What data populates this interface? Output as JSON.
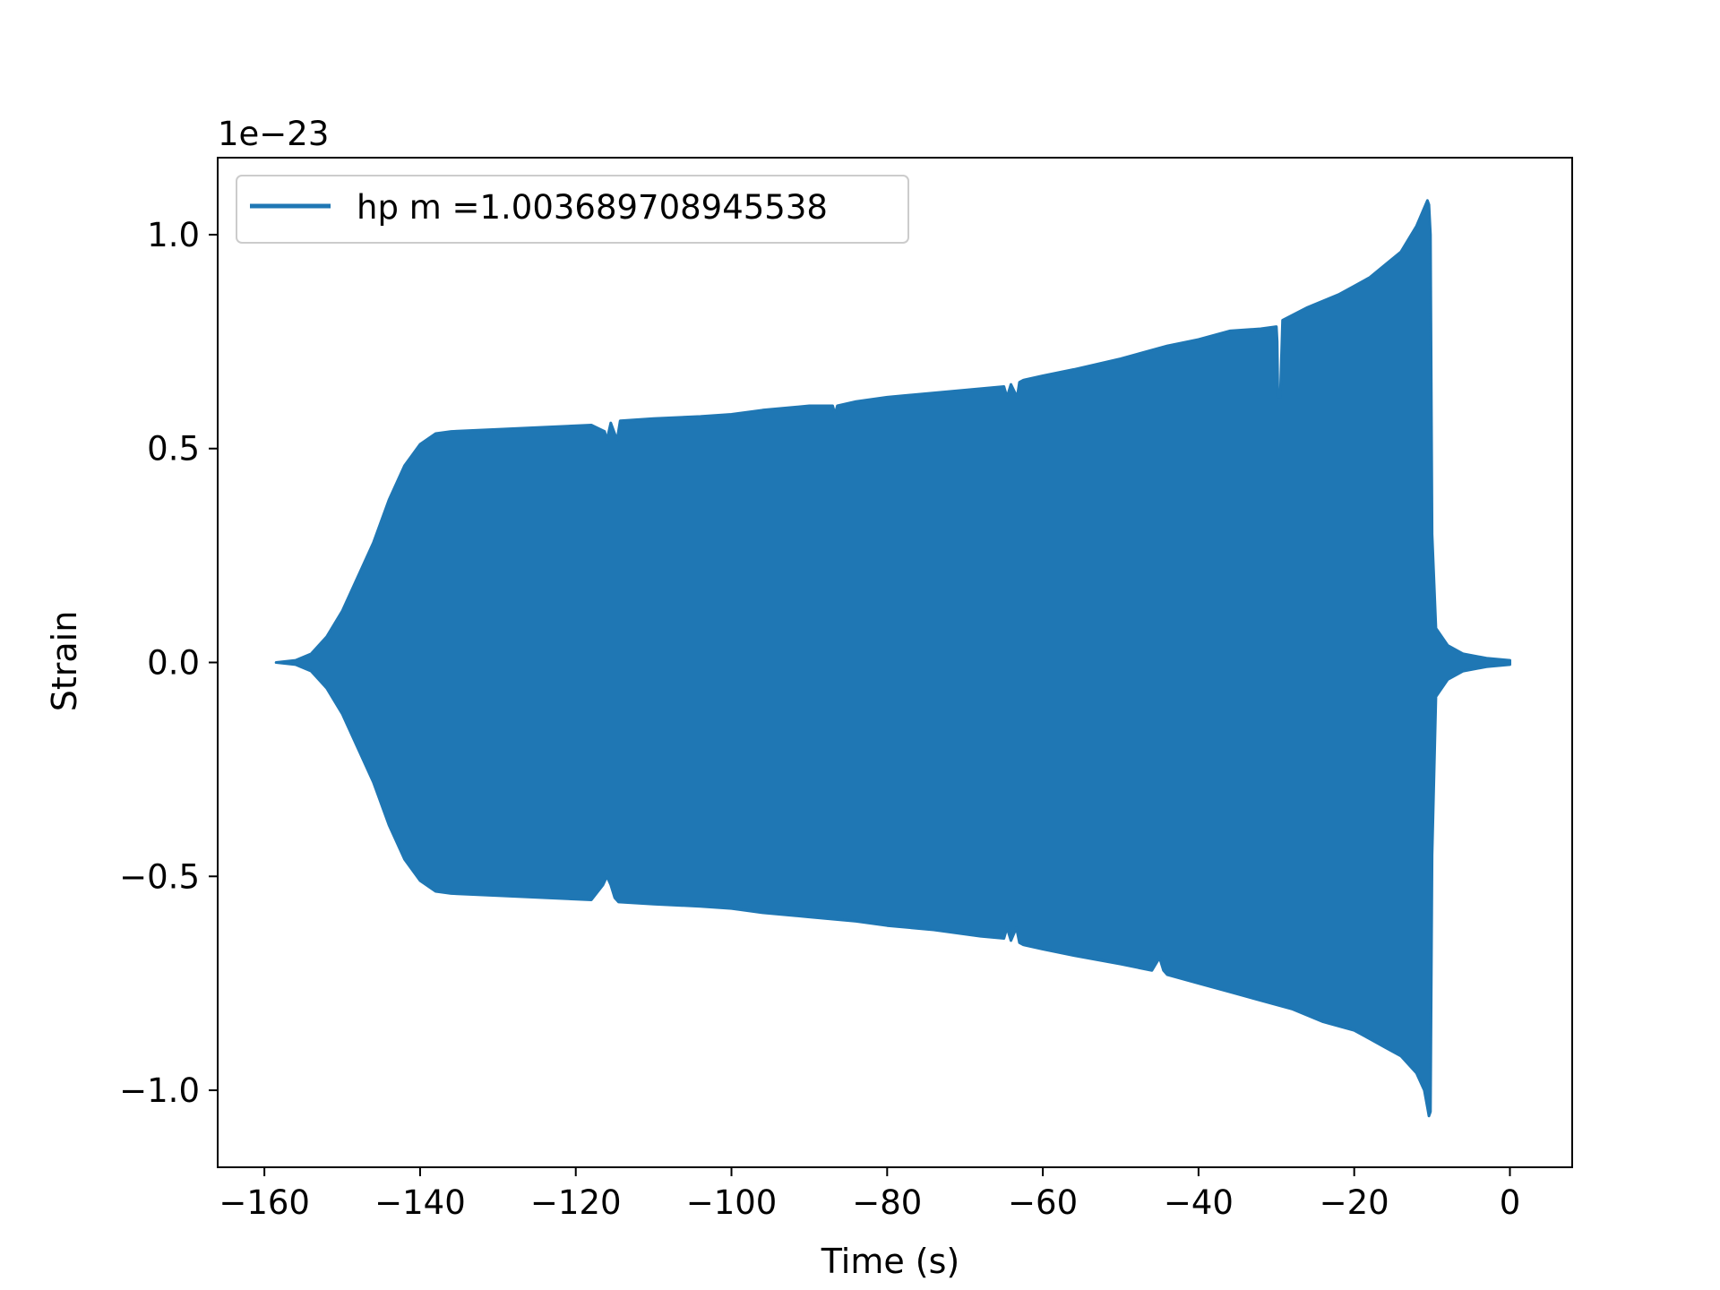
{
  "chart_data": {
    "type": "line",
    "xlabel": "Time (s)",
    "ylabel": "Strain",
    "y_offset_label": "1e−23",
    "xlim": [
      -166,
      8
    ],
    "ylim": [
      -1.18,
      1.18
    ],
    "x_ticks": [
      -160,
      -140,
      -120,
      -100,
      -80,
      -60,
      -40,
      -20,
      0
    ],
    "x_tick_labels": [
      "−160",
      "−140",
      "−120",
      "−100",
      "−80",
      "−60",
      "−40",
      "−20",
      "0"
    ],
    "y_ticks": [
      1.0,
      0.5,
      0.0,
      -0.5,
      -1.0
    ],
    "y_tick_labels": [
      "1.0",
      "0.5",
      "0.0",
      "−0.5",
      "−1.0"
    ],
    "grid": false,
    "legend_position": "top-left",
    "series": [
      {
        "name": "hp m =1.003689708945538",
        "color": "#1f77b4",
        "render": "dense-oscillation-envelope",
        "upper_envelope": {
          "x": [
            -158.5,
            -156,
            -154,
            -152,
            -150,
            -148,
            -146,
            -144,
            -142,
            -140,
            -138,
            -136,
            -130,
            -124,
            -118,
            -116.3,
            -116,
            -115.5,
            -114.7,
            -114.3,
            -110,
            -104,
            -100,
            -96,
            -90,
            -87,
            -86.7,
            -86.4,
            -84,
            -80,
            -74,
            -68,
            -65,
            -64.6,
            -64.1,
            -63.3,
            -63,
            -62.5,
            -60,
            -56,
            -50,
            -44,
            -40,
            -36,
            -32,
            -30,
            -29.9,
            -29.8,
            -29.5,
            -29.2,
            -26,
            -22,
            -20,
            -18,
            -16,
            -14,
            -12,
            -10.6,
            -10.4,
            -10.2,
            -10,
            -9.5,
            -8,
            -6,
            -3,
            0
          ],
          "y": [
            0.0,
            0.005,
            0.02,
            0.06,
            0.12,
            0.2,
            0.28,
            0.38,
            0.46,
            0.51,
            0.535,
            0.54,
            0.545,
            0.55,
            0.555,
            0.54,
            0.52,
            0.56,
            0.52,
            0.565,
            0.57,
            0.575,
            0.58,
            0.59,
            0.6,
            0.6,
            0.58,
            0.6,
            0.61,
            0.62,
            0.63,
            0.64,
            0.645,
            0.62,
            0.65,
            0.62,
            0.655,
            0.66,
            0.67,
            0.685,
            0.71,
            0.74,
            0.755,
            0.775,
            0.78,
            0.785,
            0.75,
            0.62,
            0.62,
            0.8,
            0.83,
            0.86,
            0.88,
            0.9,
            0.93,
            0.96,
            1.02,
            1.08,
            1.07,
            1.0,
            0.3,
            0.08,
            0.04,
            0.02,
            0.01,
            0.005
          ]
        },
        "lower_envelope": {
          "x": [
            -158.5,
            -156,
            -154,
            -152,
            -150,
            -148,
            -146,
            -144,
            -142,
            -140,
            -138,
            -136,
            -130,
            -124,
            -118,
            -116.5,
            -116,
            -115.5,
            -115,
            -114.5,
            -110,
            -104,
            -100,
            -96,
            -90,
            -84,
            -80,
            -74,
            -68,
            -65,
            -64.6,
            -64.1,
            -63.4,
            -63,
            -62.5,
            -60,
            -56,
            -50,
            -46,
            -45,
            -44.5,
            -44,
            -40,
            -36,
            -32,
            -28,
            -24,
            -20,
            -18,
            -16,
            -14,
            -12,
            -11,
            -10.6,
            -10.4,
            -10.2,
            -10,
            -9.5,
            -8,
            -6,
            -3,
            0
          ],
          "y": [
            0.0,
            -0.005,
            -0.02,
            -0.06,
            -0.12,
            -0.2,
            -0.28,
            -0.38,
            -0.46,
            -0.51,
            -0.535,
            -0.54,
            -0.545,
            -0.55,
            -0.555,
            -0.52,
            -0.5,
            -0.52,
            -0.55,
            -0.56,
            -0.565,
            -0.57,
            -0.575,
            -0.585,
            -0.595,
            -0.605,
            -0.615,
            -0.625,
            -0.64,
            -0.645,
            -0.62,
            -0.65,
            -0.62,
            -0.655,
            -0.66,
            -0.67,
            -0.685,
            -0.705,
            -0.72,
            -0.69,
            -0.72,
            -0.73,
            -0.75,
            -0.77,
            -0.79,
            -0.81,
            -0.84,
            -0.86,
            -0.88,
            -0.9,
            -0.92,
            -0.96,
            -1.0,
            -1.04,
            -1.06,
            -1.05,
            -0.45,
            -0.08,
            -0.04,
            -0.02,
            -0.01,
            -0.005
          ]
        }
      }
    ]
  }
}
